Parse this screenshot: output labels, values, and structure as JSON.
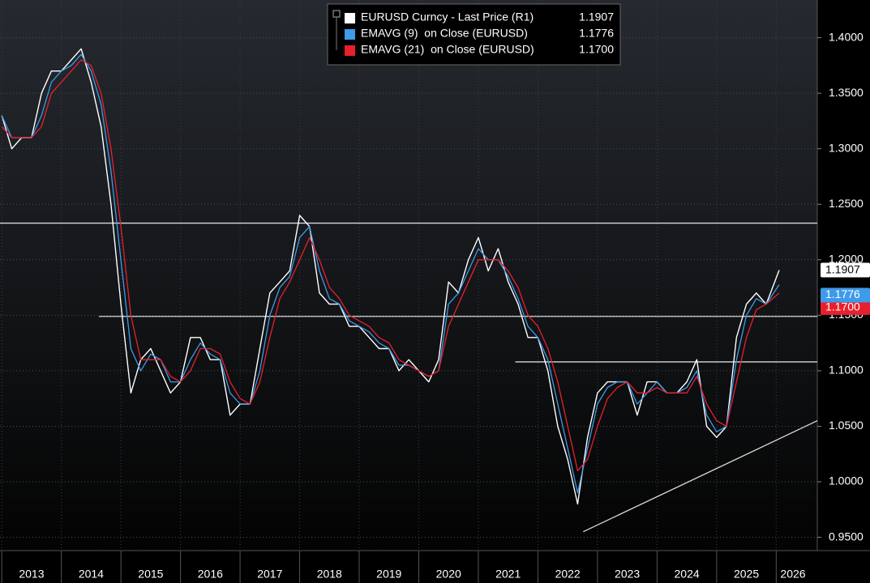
{
  "chart_data": {
    "type": "line",
    "x": [
      2013,
      2013.167,
      2013.333,
      2013.5,
      2013.667,
      2013.833,
      2014,
      2014.167,
      2014.333,
      2014.5,
      2014.667,
      2014.833,
      2015,
      2015.167,
      2015.333,
      2015.5,
      2015.667,
      2015.833,
      2016,
      2016.167,
      2016.333,
      2016.5,
      2016.667,
      2016.833,
      2017,
      2017.167,
      2017.333,
      2017.5,
      2017.667,
      2017.833,
      2018,
      2018.167,
      2018.333,
      2018.5,
      2018.667,
      2018.833,
      2019,
      2019.167,
      2019.333,
      2019.5,
      2019.667,
      2019.833,
      2020,
      2020.167,
      2020.333,
      2020.5,
      2020.667,
      2020.833,
      2021,
      2021.167,
      2021.333,
      2021.5,
      2021.667,
      2021.833,
      2022,
      2022.167,
      2022.333,
      2022.5,
      2022.667,
      2022.833,
      2023,
      2023.167,
      2023.333,
      2023.5,
      2023.667,
      2023.833,
      2024,
      2024.167,
      2024.333,
      2024.5,
      2024.667,
      2024.833,
      2025,
      2025.167,
      2025.333,
      2025.5,
      2025.667,
      2025.833,
      2026.05
    ],
    "series": [
      {
        "name": "EURUSD Curncy - Last Price (R1)",
        "color": "#ffffff",
        "last": 1.1907,
        "values": [
          1.33,
          1.3,
          1.31,
          1.31,
          1.35,
          1.37,
          1.37,
          1.38,
          1.39,
          1.36,
          1.32,
          1.25,
          1.16,
          1.08,
          1.11,
          1.12,
          1.1,
          1.08,
          1.09,
          1.13,
          1.13,
          1.11,
          1.11,
          1.06,
          1.07,
          1.07,
          1.12,
          1.17,
          1.18,
          1.19,
          1.24,
          1.23,
          1.17,
          1.16,
          1.16,
          1.14,
          1.14,
          1.13,
          1.12,
          1.12,
          1.1,
          1.11,
          1.1,
          1.09,
          1.11,
          1.18,
          1.17,
          1.2,
          1.22,
          1.19,
          1.21,
          1.18,
          1.16,
          1.13,
          1.13,
          1.1,
          1.05,
          1.02,
          0.98,
          1.04,
          1.08,
          1.09,
          1.09,
          1.09,
          1.06,
          1.09,
          1.09,
          1.08,
          1.08,
          1.09,
          1.11,
          1.05,
          1.04,
          1.05,
          1.13,
          1.16,
          1.17,
          1.16,
          1.1907
        ]
      },
      {
        "name": "EMAVG (9)  on Close (EURUSD)",
        "color": "#3d9be9",
        "last": 1.1776,
        "values": [
          1.33,
          1.31,
          1.31,
          1.31,
          1.33,
          1.36,
          1.37,
          1.375,
          1.385,
          1.37,
          1.34,
          1.28,
          1.2,
          1.12,
          1.1,
          1.115,
          1.11,
          1.09,
          1.09,
          1.11,
          1.125,
          1.115,
          1.11,
          1.08,
          1.07,
          1.07,
          1.1,
          1.15,
          1.175,
          1.185,
          1.22,
          1.23,
          1.19,
          1.165,
          1.16,
          1.145,
          1.14,
          1.135,
          1.125,
          1.12,
          1.105,
          1.105,
          1.1,
          1.095,
          1.1,
          1.16,
          1.17,
          1.19,
          1.21,
          1.2,
          1.2,
          1.185,
          1.165,
          1.14,
          1.13,
          1.11,
          1.07,
          1.03,
          0.99,
          1.03,
          1.07,
          1.085,
          1.09,
          1.09,
          1.07,
          1.08,
          1.09,
          1.08,
          1.08,
          1.085,
          1.1,
          1.06,
          1.045,
          1.05,
          1.11,
          1.15,
          1.165,
          1.16,
          1.1776
        ]
      },
      {
        "name": "EMAVG (21)  on Close (EURUSD)",
        "color": "#e8202e",
        "last": 1.17,
        "values": [
          1.32,
          1.31,
          1.31,
          1.31,
          1.32,
          1.35,
          1.36,
          1.37,
          1.38,
          1.375,
          1.35,
          1.3,
          1.23,
          1.15,
          1.11,
          1.11,
          1.11,
          1.095,
          1.09,
          1.1,
          1.12,
          1.12,
          1.115,
          1.09,
          1.075,
          1.07,
          1.09,
          1.13,
          1.165,
          1.18,
          1.2,
          1.22,
          1.2,
          1.175,
          1.165,
          1.15,
          1.145,
          1.14,
          1.13,
          1.125,
          1.11,
          1.105,
          1.1,
          1.095,
          1.1,
          1.14,
          1.16,
          1.18,
          1.2,
          1.2,
          1.2,
          1.19,
          1.175,
          1.15,
          1.14,
          1.12,
          1.09,
          1.05,
          1.01,
          1.02,
          1.05,
          1.075,
          1.085,
          1.09,
          1.08,
          1.08,
          1.085,
          1.08,
          1.08,
          1.08,
          1.095,
          1.07,
          1.055,
          1.05,
          1.09,
          1.13,
          1.155,
          1.16,
          1.17
        ],
        "last_label": "1.1700"
      }
    ],
    "xlim": [
      2012.97,
      2026.69
    ],
    "xticks": [
      2013,
      2014,
      2015,
      2016,
      2017,
      2018,
      2019,
      2020,
      2021,
      2022,
      2023,
      2024,
      2025,
      2026
    ],
    "ylim": [
      0.938,
      1.434
    ],
    "yticks": [
      {
        "value": 0.95,
        "label": "0.9500"
      },
      {
        "value": 1.0,
        "label": "1.0000"
      },
      {
        "value": 1.05,
        "label": "1.0500"
      },
      {
        "value": 1.1,
        "label": "1.1000"
      },
      {
        "value": 1.15,
        "label": "1.1500"
      },
      {
        "value": 1.2,
        "label": "1.2000"
      },
      {
        "value": 1.25,
        "label": "1.2500"
      },
      {
        "value": 1.3,
        "label": "1.3000"
      },
      {
        "value": 1.35,
        "label": "1.3500"
      },
      {
        "value": 1.4,
        "label": "1.4000"
      }
    ],
    "grid": true,
    "reference_lines": [
      {
        "x": [
          2012.97,
          2026.69
        ],
        "y": [
          1.233,
          1.233
        ]
      },
      {
        "x": [
          2014.63,
          2026.69
        ],
        "y": [
          1.149,
          1.149
        ]
      },
      {
        "x": [
          2021.62,
          2026.69
        ],
        "y": [
          1.108,
          1.108
        ]
      },
      {
        "x": [
          2022.76,
          2026.69
        ],
        "y": [
          0.955,
          1.055
        ]
      }
    ]
  }
}
